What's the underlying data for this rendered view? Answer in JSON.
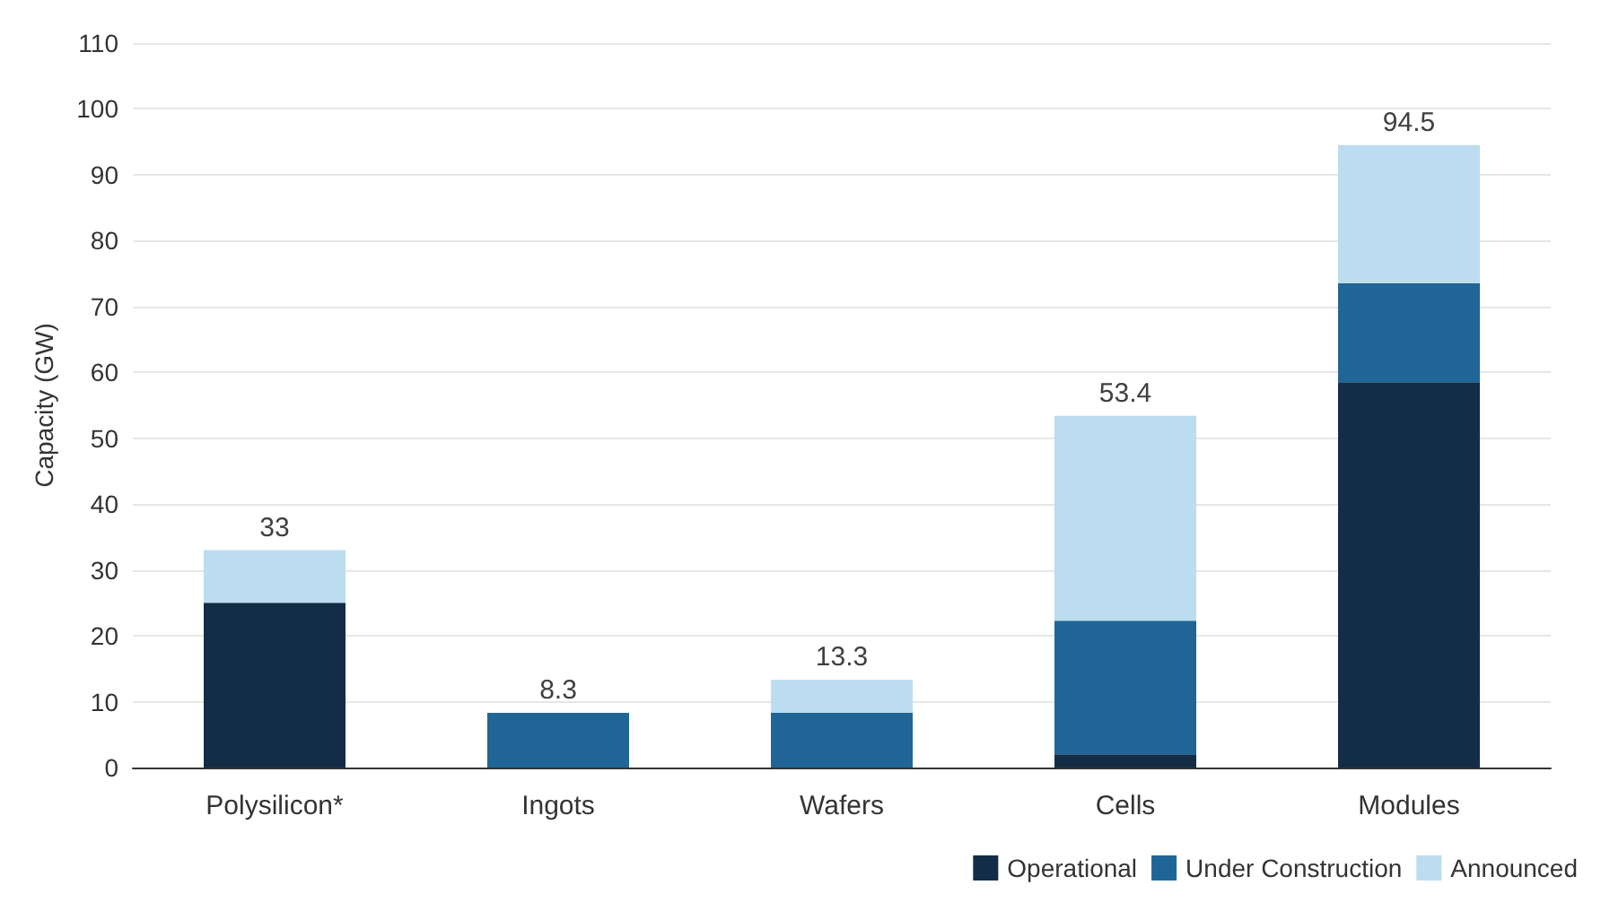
{
  "chart_data": {
    "type": "bar",
    "stacked": true,
    "ylabel": "Capacity (GW)",
    "categories": [
      "Polysilicon*",
      "Ingots",
      "Wafers",
      "Cells",
      "Modules"
    ],
    "series": [
      {
        "name": "Operational",
        "color": "#132d46",
        "values": [
          25,
          0,
          0,
          2,
          58.5
        ]
      },
      {
        "name": "Under Construction",
        "color": "#1f6696",
        "values": [
          0,
          8.3,
          8.3,
          20.3,
          15
        ]
      },
      {
        "name": "Announced",
        "color": "#bcdcf0",
        "values": [
          8,
          0,
          5,
          31.1,
          21
        ]
      }
    ],
    "totals": [
      "33",
      "8.3",
      "13.3",
      "53.4",
      "94.5"
    ],
    "ylim": [
      0,
      110
    ],
    "yticks": [
      0,
      10,
      20,
      30,
      40,
      50,
      60,
      70,
      80,
      90,
      100,
      110
    ],
    "grid": "y",
    "legend": "bottom right"
  }
}
